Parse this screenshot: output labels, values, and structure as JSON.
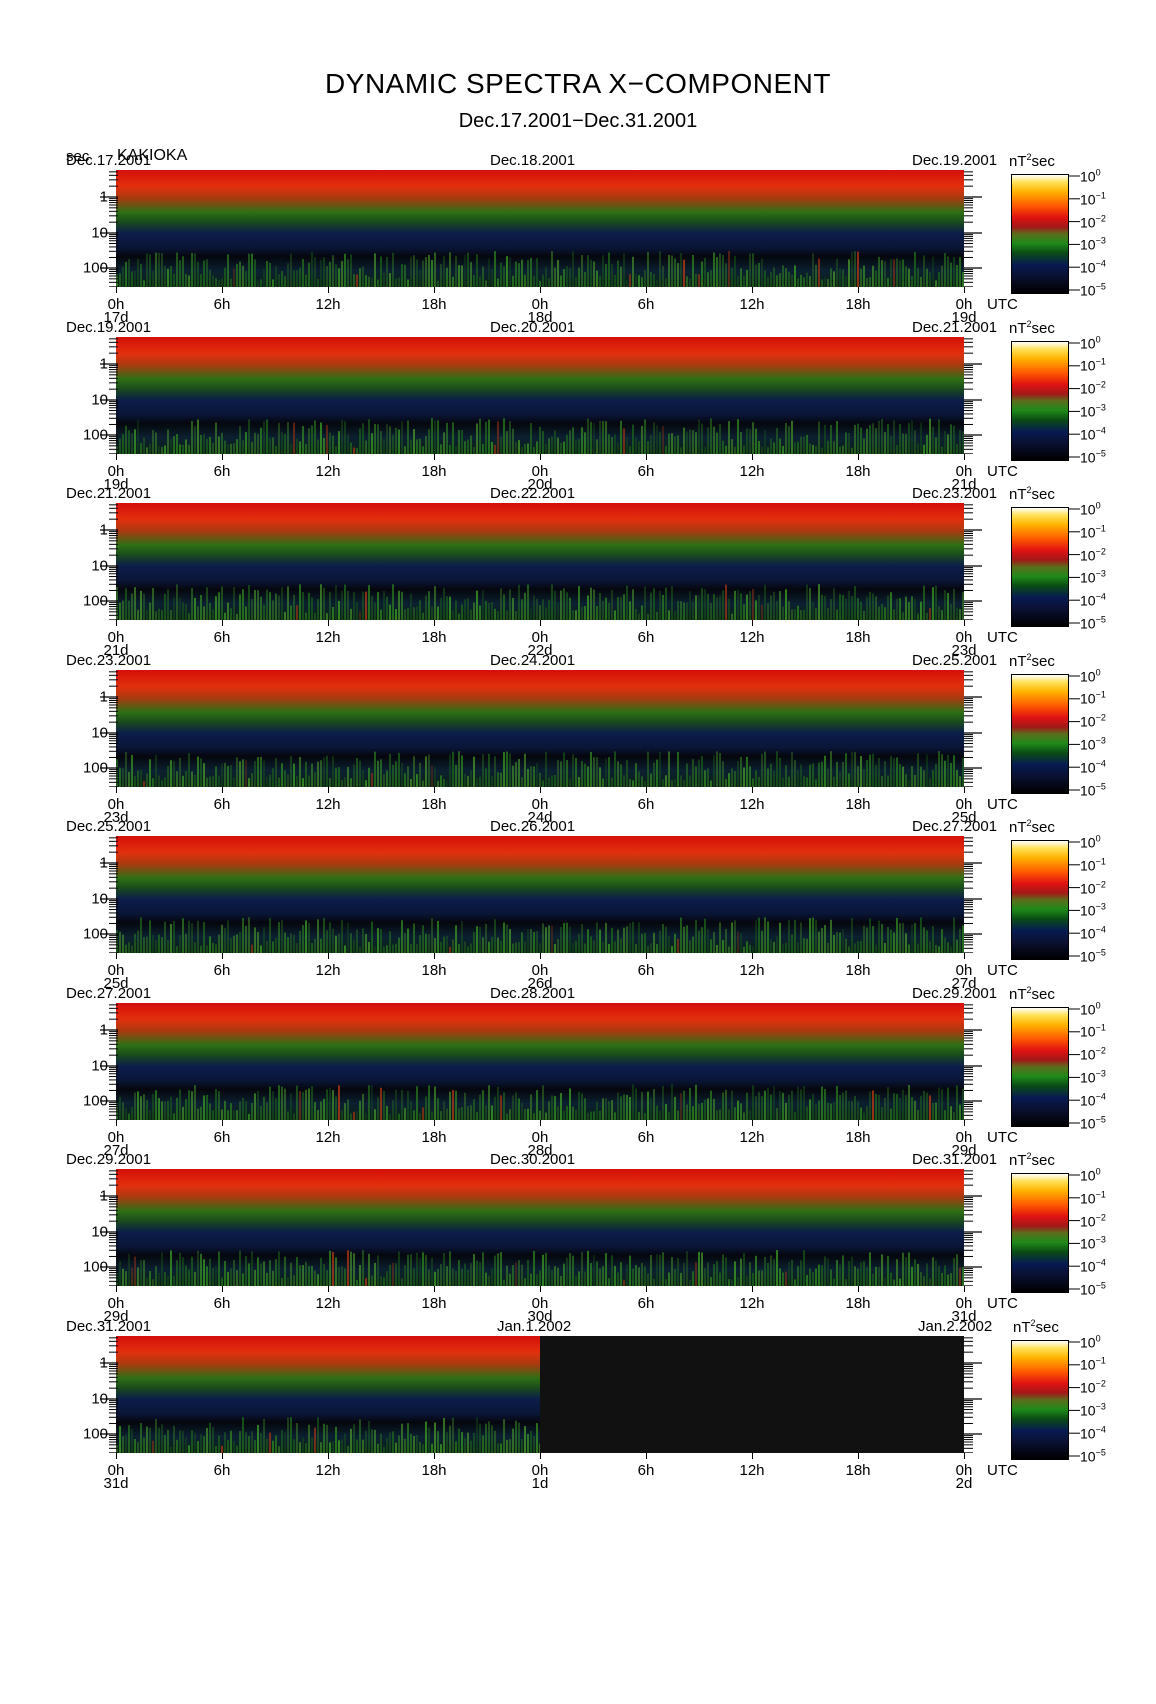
{
  "header": {
    "title": "DYNAMIC SPECTRA X−COMPONENT",
    "subtitle": "Dec.17.2001−Dec.31.2001",
    "unit": "sec",
    "station": "KAKIOKA"
  },
  "chart_data": {
    "type": "heatmap",
    "title": "DYNAMIC SPECTRA X−COMPONENT",
    "subtitle": "Dec.17.2001−Dec.31.2001",
    "station": "KAKIOKA",
    "ylabel": "sec",
    "ylabel_ticks": [
      "1",
      "10",
      "100"
    ],
    "xlabel": "UTC",
    "colorbar_unit": "nT",
    "colorbar_unit_exp": "2",
    "colorbar_unit_suffix": "sec",
    "colorbar_ticks": [
      {
        "base": "10",
        "exp": "0"
      },
      {
        "base": "10",
        "exp": "−1"
      },
      {
        "base": "10",
        "exp": "−2"
      },
      {
        "base": "10",
        "exp": "−3"
      },
      {
        "base": "10",
        "exp": "−4"
      },
      {
        "base": "10",
        "exp": "−5"
      }
    ],
    "xtick_labels": [
      "0h",
      "6h",
      "12h",
      "18h",
      "0h",
      "6h",
      "12h",
      "18h",
      "0h"
    ],
    "panels": [
      {
        "start": "Dec.17.2001",
        "mid": "Dec.18.2001",
        "end": "Dec.19.2001",
        "days": [
          "17d",
          "18d",
          "19d"
        ],
        "data_fraction": 1.0
      },
      {
        "start": "Dec.19.2001",
        "mid": "Dec.20.2001",
        "end": "Dec.21.2001",
        "days": [
          "19d",
          "20d",
          "21d"
        ],
        "data_fraction": 1.0
      },
      {
        "start": "Dec.21.2001",
        "mid": "Dec.22.2001",
        "end": "Dec.23.2001",
        "days": [
          "21d",
          "22d",
          "23d"
        ],
        "data_fraction": 1.0
      },
      {
        "start": "Dec.23.2001",
        "mid": "Dec.24.2001",
        "end": "Dec.25.2001",
        "days": [
          "23d",
          "24d",
          "25d"
        ],
        "data_fraction": 1.0
      },
      {
        "start": "Dec.25.2001",
        "mid": "Dec.26.2001",
        "end": "Dec.27.2001",
        "days": [
          "25d",
          "26d",
          "27d"
        ],
        "data_fraction": 1.0
      },
      {
        "start": "Dec.27.2001",
        "mid": "Dec.28.2001",
        "end": "Dec.29.2001",
        "days": [
          "27d",
          "28d",
          "29d"
        ],
        "data_fraction": 1.0
      },
      {
        "start": "Dec.29.2001",
        "mid": "Dec.30.2001",
        "end": "Dec.31.2001",
        "days": [
          "29d",
          "30d",
          "31d"
        ],
        "data_fraction": 1.0
      },
      {
        "start": "Dec.31.2001",
        "mid": "Jan.1.2002",
        "end": "Jan.2.2002",
        "days": [
          "31d",
          "1d",
          "2d"
        ],
        "data_fraction": 0.5
      }
    ]
  }
}
